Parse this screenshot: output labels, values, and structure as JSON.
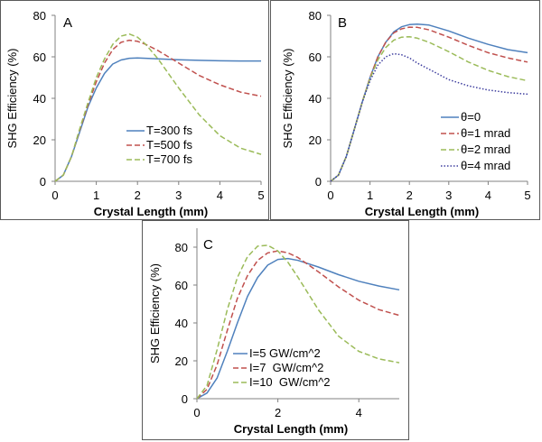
{
  "figure": {
    "panels": [
      {
        "id": "A",
        "label": "A"
      },
      {
        "id": "B",
        "label": "B"
      },
      {
        "id": "C",
        "label": "C"
      }
    ]
  },
  "chart_data": [
    {
      "panel": "A",
      "type": "line",
      "title": "",
      "xlabel": "Crystal Length (mm)",
      "ylabel": "SHG Efficiency (%)",
      "xlim": [
        0,
        5
      ],
      "ylim": [
        0,
        80
      ],
      "xticks": [
        0,
        1,
        2,
        3,
        4,
        5
      ],
      "yticks": [
        0,
        20,
        40,
        60,
        80
      ],
      "legend_position": "lower-middle",
      "series": [
        {
          "name": "T=300 fs",
          "color": "#4F81BD",
          "dash": "solid",
          "x": [
            0,
            0.2,
            0.4,
            0.6,
            0.8,
            1.0,
            1.2,
            1.4,
            1.6,
            1.8,
            2.0,
            2.2,
            2.5,
            3.0,
            3.5,
            4.0,
            4.5,
            5.0
          ],
          "y": [
            0,
            3,
            12,
            24,
            36,
            45,
            52,
            56.5,
            58.5,
            59.3,
            59.5,
            59.3,
            59,
            58.6,
            58.3,
            58.1,
            58,
            58
          ]
        },
        {
          "name": "T=500 fs",
          "color": "#C0504D",
          "dash": "dashed",
          "x": [
            0,
            0.2,
            0.4,
            0.6,
            0.8,
            1.0,
            1.2,
            1.4,
            1.6,
            1.8,
            2.0,
            2.2,
            2.5,
            3.0,
            3.5,
            4.0,
            4.5,
            5.0
          ],
          "y": [
            0,
            3,
            12,
            25,
            37,
            48,
            57,
            63.5,
            67,
            68,
            67.5,
            66,
            63,
            57,
            51,
            46.5,
            43,
            41
          ]
        },
        {
          "name": "T=700 fs",
          "color": "#9BBB59",
          "dash": "dashed",
          "x": [
            0,
            0.2,
            0.4,
            0.6,
            0.8,
            1.0,
            1.2,
            1.4,
            1.6,
            1.8,
            2.0,
            2.2,
            2.5,
            3.0,
            3.5,
            4.0,
            4.5,
            5.0
          ],
          "y": [
            0,
            3,
            12,
            25.5,
            38,
            50,
            59,
            66,
            70,
            71,
            69.5,
            66,
            59,
            45,
            32,
            22,
            16,
            13
          ]
        }
      ]
    },
    {
      "panel": "B",
      "type": "line",
      "title": "",
      "xlabel": "Crystal Length (mm)",
      "ylabel": "SHG Efficiency (%)",
      "xlim": [
        0,
        5
      ],
      "ylim": [
        0,
        80
      ],
      "xticks": [
        0,
        1,
        2,
        3,
        4,
        5
      ],
      "yticks": [
        0,
        20,
        40,
        60,
        80
      ],
      "legend_position": "lower-right",
      "series": [
        {
          "name": "θ=0",
          "color": "#4F81BD",
          "dash": "solid",
          "x": [
            0,
            0.2,
            0.4,
            0.6,
            0.8,
            1.0,
            1.2,
            1.4,
            1.6,
            1.8,
            2.0,
            2.2,
            2.5,
            3.0,
            3.5,
            4.0,
            4.5,
            5.0
          ],
          "y": [
            0,
            3,
            12,
            25,
            38,
            50,
            60,
            67,
            72,
            74.5,
            75.5,
            75.8,
            75.3,
            72.5,
            69,
            66,
            63.5,
            62
          ]
        },
        {
          "name": "θ=1 mrad",
          "color": "#C0504D",
          "dash": "dashed",
          "x": [
            0,
            0.2,
            0.4,
            0.6,
            0.8,
            1.0,
            1.2,
            1.4,
            1.6,
            1.8,
            2.0,
            2.2,
            2.5,
            3.0,
            3.5,
            4.0,
            4.5,
            5.0
          ],
          "y": [
            0,
            3,
            12,
            25,
            38,
            50,
            60,
            67,
            71.5,
            73.5,
            74.3,
            74.2,
            73,
            69.5,
            65.5,
            62,
            59.5,
            57.5
          ]
        },
        {
          "name": "θ=2 mrad",
          "color": "#9BBB59",
          "dash": "dashed",
          "x": [
            0,
            0.2,
            0.4,
            0.6,
            0.8,
            1.0,
            1.2,
            1.4,
            1.6,
            1.8,
            2.0,
            2.2,
            2.5,
            3.0,
            3.5,
            4.0,
            4.5,
            5.0
          ],
          "y": [
            0,
            3,
            12,
            25,
            38,
            49.5,
            58.5,
            64.5,
            68,
            69.5,
            69.7,
            69,
            67,
            62.5,
            57.5,
            53.5,
            50.5,
            48.5
          ]
        },
        {
          "name": "θ=4 mrad",
          "color": "#3F3F9F",
          "dash": "dotted",
          "x": [
            0,
            0.2,
            0.4,
            0.6,
            0.8,
            1.0,
            1.2,
            1.4,
            1.6,
            1.8,
            2.0,
            2.2,
            2.5,
            3.0,
            3.5,
            4.0,
            4.5,
            5.0
          ],
          "y": [
            0,
            3,
            12,
            25,
            38,
            48.5,
            56,
            60,
            61.5,
            61,
            59.5,
            57,
            54,
            49,
            46,
            44,
            42.8,
            42
          ]
        }
      ]
    },
    {
      "panel": "C",
      "type": "line",
      "title": "",
      "xlabel": "Crystal Length (mm)",
      "ylabel": "SHG Efficiency (%)",
      "xlim": [
        0,
        5
      ],
      "ylim": [
        0,
        90
      ],
      "xticks": [
        0,
        2,
        4
      ],
      "yticks": [
        0,
        20,
        40,
        60,
        80
      ],
      "legend_position": "lower-left",
      "series": [
        {
          "name": "I=5 GW/cm^2",
          "color": "#4F81BD",
          "dash": "solid",
          "x": [
            0,
            0.25,
            0.5,
            0.75,
            1.0,
            1.25,
            1.5,
            1.75,
            2.0,
            2.25,
            2.5,
            3.0,
            3.5,
            4.0,
            4.5,
            5.0
          ],
          "y": [
            0,
            3,
            11,
            25,
            40,
            54,
            64,
            70.5,
            73.5,
            74,
            73,
            69.5,
            65.5,
            62,
            59.5,
            57.5
          ]
        },
        {
          "name": "I=7  GW/cm^2",
          "color": "#C0504D",
          "dash": "dashed",
          "x": [
            0,
            0.25,
            0.5,
            0.75,
            1.0,
            1.25,
            1.5,
            1.75,
            2.0,
            2.25,
            2.5,
            3.0,
            3.5,
            4.0,
            4.5,
            5.0
          ],
          "y": [
            0,
            5,
            18,
            36,
            53,
            65,
            73,
            77,
            78,
            77,
            74.5,
            67,
            59,
            52,
            47,
            44
          ]
        },
        {
          "name": "I=10  GW/cm^2",
          "color": "#9BBB59",
          "dash": "dashed",
          "x": [
            0,
            0.25,
            0.5,
            0.75,
            1.0,
            1.25,
            1.5,
            1.75,
            2.0,
            2.25,
            2.5,
            3.0,
            3.5,
            4.0,
            4.5,
            5.0
          ],
          "y": [
            0,
            7,
            26,
            47,
            64,
            75,
            80.5,
            81,
            78,
            72,
            64,
            47,
            33,
            25,
            21,
            19
          ]
        }
      ]
    }
  ]
}
